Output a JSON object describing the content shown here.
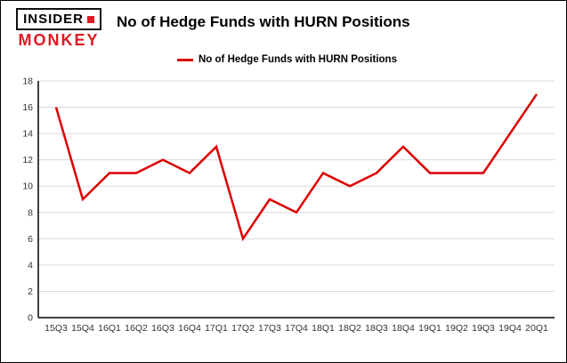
{
  "logo": {
    "line1": "INSIDER",
    "line2": "MONKEY"
  },
  "header": {
    "title": "No of Hedge Funds with HURN Positions"
  },
  "legend": {
    "label": "No of Hedge Funds with HURN Positions"
  },
  "colors": {
    "line": "#dd0000",
    "logo_red": "#e01a22",
    "grid": "#d9d9d9",
    "axis": "#000000",
    "tick_text": "#333333"
  },
  "chart_data": {
    "type": "line",
    "title": "No of Hedge Funds with HURN Positions",
    "legend_entries": [
      "No of Hedge Funds with HURN Positions"
    ],
    "legend_position": "top",
    "grid": true,
    "categories": [
      "15Q3",
      "15Q4",
      "16Q1",
      "16Q2",
      "16Q3",
      "16Q4",
      "17Q1",
      "17Q2",
      "17Q3",
      "17Q4",
      "18Q1",
      "18Q2",
      "18Q3",
      "18Q4",
      "19Q1",
      "19Q2",
      "19Q3",
      "19Q4",
      "20Q1"
    ],
    "series": [
      {
        "name": "No of Hedge Funds with HURN Positions",
        "values": [
          16,
          9,
          11,
          11,
          12,
          11,
          13,
          6,
          9,
          8,
          11,
          10,
          11,
          13,
          11,
          11,
          11,
          14,
          17
        ]
      }
    ],
    "xlabel": "",
    "ylabel": "",
    "ylim": [
      0,
      18
    ],
    "ytick_step": 2
  }
}
